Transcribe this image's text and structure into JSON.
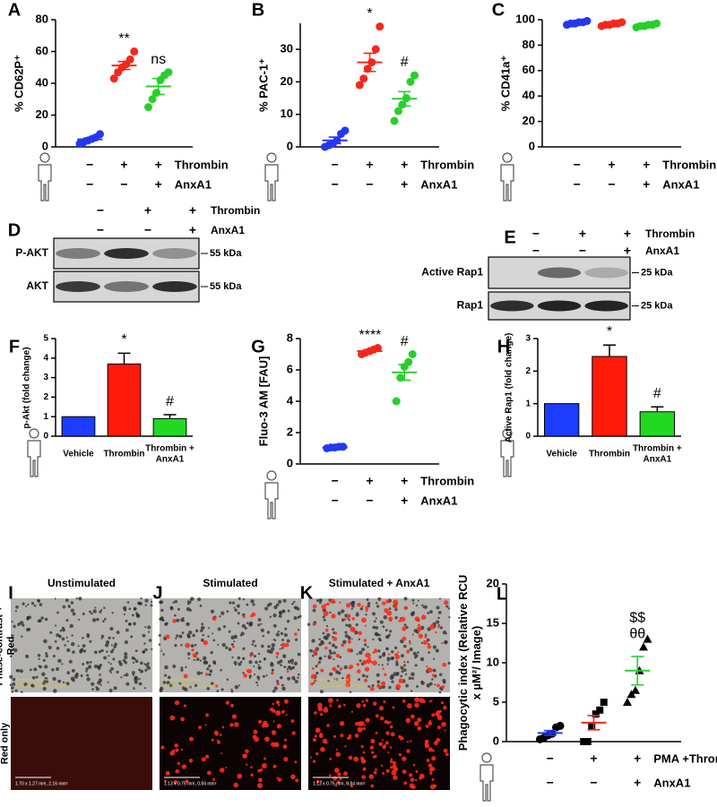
{
  "chart_data": [
    {
      "panel": "A",
      "type": "dotplot",
      "ylabel": "% CD62P⁺",
      "ylim": [
        0,
        80
      ],
      "yticks": [
        0,
        20,
        40,
        60,
        80
      ],
      "series": [
        {
          "color": "#2438f0",
          "values": [
            2,
            3,
            4,
            5,
            6,
            8
          ],
          "mean": 4.7,
          "sem": 0.9
        },
        {
          "color": "#f5271b",
          "values": [
            43,
            47,
            50,
            52,
            55,
            60
          ],
          "mean": 51.2,
          "sem": 2.5
        },
        {
          "color": "#27cf2c",
          "values": [
            25,
            30,
            34,
            42,
            45,
            47
          ],
          "mean": 38,
          "sem": 5
        }
      ],
      "annotations": [
        null,
        "**",
        "ns"
      ],
      "conditions": [
        {
          "label": "Thrombin",
          "signs": [
            "−",
            "+",
            "+"
          ]
        },
        {
          "label": "AnxA1",
          "signs": [
            "−",
            "−",
            "+"
          ]
        }
      ]
    },
    {
      "panel": "B",
      "type": "dotplot",
      "ylabel": "% PAC-1⁺",
      "ylim": [
        0,
        38
      ],
      "yticks": [
        0,
        10,
        20,
        30
      ],
      "series": [
        {
          "color": "#2438f0",
          "values": [
            0,
            0.5,
            1,
            2,
            4,
            5
          ],
          "mean": 2,
          "sem": 1
        },
        {
          "color": "#f5271b",
          "values": [
            19,
            21,
            24,
            26,
            30,
            37
          ],
          "mean": 26,
          "sem": 2.8
        },
        {
          "color": "#27cf2c",
          "values": [
            8,
            11,
            13,
            15,
            20,
            22
          ],
          "mean": 14.8,
          "sem": 2.2
        }
      ],
      "annotations": [
        null,
        "*",
        "#"
      ],
      "conditions": [
        {
          "label": "Thrombin",
          "signs": [
            "−",
            "+",
            "+"
          ]
        },
        {
          "label": "AnxA1",
          "signs": [
            "−",
            "−",
            "+"
          ]
        }
      ]
    },
    {
      "panel": "C",
      "type": "dotplot",
      "ylabel": "% CD41a⁺",
      "ylim": [
        0,
        100
      ],
      "yticks": [
        0,
        20,
        40,
        60,
        80,
        100
      ],
      "series": [
        {
          "color": "#2438f0",
          "values": [
            96,
            97,
            97,
            98,
            98,
            99
          ],
          "mean": 97.5,
          "sem": 0.5
        },
        {
          "color": "#f5271b",
          "values": [
            95,
            96,
            96,
            97,
            97,
            98
          ],
          "mean": 96.5,
          "sem": 0.4
        },
        {
          "color": "#27cf2c",
          "values": [
            94,
            95,
            95,
            96,
            96,
            97
          ],
          "mean": 95.5,
          "sem": 0.4
        }
      ],
      "conditions": [
        {
          "label": "Thrombin",
          "signs": [
            "−",
            "+",
            "+"
          ]
        },
        {
          "label": "AnxA1",
          "signs": [
            "−",
            "−",
            "+"
          ]
        }
      ]
    },
    {
      "panel": "F",
      "type": "bar",
      "ylabel": "p-Akt (fold change)",
      "ylim": [
        0,
        5
      ],
      "yticks": [
        0,
        1,
        2,
        3,
        4,
        5
      ],
      "categories": [
        "Vehicle",
        "Thrombin",
        "Thrombin + AnxA1"
      ],
      "values": [
        1,
        3.7,
        0.9
      ],
      "errors": [
        null,
        0.55,
        0.2
      ],
      "colors": [
        "#1e3cff",
        "#ff1a0a",
        "#22d922"
      ],
      "annotations": [
        null,
        "*",
        "#"
      ]
    },
    {
      "panel": "G",
      "type": "dotplot",
      "ylabel": "Fluo-3 AM [FAU]",
      "ylim": [
        0,
        8
      ],
      "yticks": [
        0,
        2,
        4,
        6,
        8
      ],
      "series": [
        {
          "color": "#2438f0",
          "values": [
            1,
            1.05,
            1.05,
            1.1,
            1.1
          ],
          "mean": 1.06,
          "sem": 0.02
        },
        {
          "color": "#f5271b",
          "values": [
            7,
            7.1,
            7.2,
            7.3,
            7.4
          ],
          "mean": 7.2,
          "sem": 0.1
        },
        {
          "color": "#27cf2c",
          "values": [
            4,
            5.5,
            6.2,
            6.5,
            7
          ],
          "mean": 5.84,
          "sem": 0.5
        }
      ],
      "annotations": [
        null,
        "****",
        "#"
      ],
      "conditions": [
        {
          "label": "Thrombin",
          "signs": [
            "−",
            "+",
            "+"
          ]
        },
        {
          "label": "AnxA1",
          "signs": [
            "−",
            "−",
            "+"
          ]
        }
      ]
    },
    {
      "panel": "H",
      "type": "bar",
      "ylabel": "Active Rap1 (fold change)",
      "ylim": [
        0,
        3
      ],
      "yticks": [
        0,
        1,
        2,
        3
      ],
      "categories": [
        "Vehicle",
        "Thrombin",
        "Thrombin + AnxA1"
      ],
      "values": [
        1,
        2.45,
        0.75
      ],
      "errors": [
        null,
        0.35,
        0.15
      ],
      "colors": [
        "#1e3cff",
        "#ff1a0a",
        "#22d922"
      ],
      "annotations": [
        null,
        "*",
        "#"
      ]
    },
    {
      "panel": "L",
      "type": "dotplot",
      "ylabel": "Phagocytic index (Relative RCU x µM²/ Image)",
      "ylim": [
        0,
        20
      ],
      "yticks": [
        0,
        5,
        10,
        15,
        20
      ],
      "marker_color": "#000000",
      "markers": [
        "circle",
        "square",
        "triangle"
      ],
      "series": [
        {
          "color": "#2438f0",
          "values": [
            0.3,
            0.5,
            0.8,
            1,
            1.8,
            2
          ],
          "mean": 1.1,
          "sem": 0.3
        },
        {
          "color": "#f5271b",
          "values": [
            0,
            0,
            2,
            3.5,
            4,
            5
          ],
          "mean": 2.4,
          "sem": 0.9
        },
        {
          "color": "#27cf2c",
          "values": [
            5,
            6,
            6.5,
            9,
            12,
            13
          ],
          "mean": 9,
          "sem": 1.8
        }
      ],
      "annotations": [
        null,
        null,
        "$$ θθ"
      ],
      "conditions": [
        {
          "label": "PMA +Thrombin",
          "signs": [
            "−",
            "+",
            "+"
          ]
        },
        {
          "label": "AnxA1",
          "signs": [
            "−",
            "−",
            "+"
          ]
        }
      ]
    }
  ],
  "blots": [
    {
      "panel": "D",
      "conditions": [
        {
          "label": "Thrombin",
          "signs": [
            "−",
            "+",
            "+"
          ]
        },
        {
          "label": "AnxA1",
          "signs": [
            "−",
            "−",
            "+"
          ]
        }
      ],
      "rows": [
        {
          "label": "P-AKT",
          "marker": "55 kDa"
        },
        {
          "label": "AKT",
          "marker": "55 kDa"
        }
      ]
    },
    {
      "panel": "E",
      "conditions": [
        {
          "label": "Thrombin",
          "signs": [
            "−",
            "+",
            "+"
          ]
        },
        {
          "label": "AnxA1",
          "signs": [
            "−",
            "−",
            "+"
          ]
        }
      ],
      "rows": [
        {
          "label": "Active Rap1",
          "marker": "25 kDa"
        },
        {
          "label": "Rap1",
          "marker": "25 kDa"
        }
      ]
    }
  ],
  "micrographs": {
    "columns": [
      {
        "panel": "I",
        "title": "Unstimulated",
        "scale_label": "1.70 x 1.27 mm, 2.16 mm²"
      },
      {
        "panel": "J",
        "title": "Stimulated",
        "scale_label": "1.13 x 0.75 mm, 0.84 mm²"
      },
      {
        "panel": "K",
        "title": "Stimulated + AnxA1",
        "scale_label": "1.13 x 0.75 mm, 0.84 mm²"
      }
    ],
    "rows": [
      "Phase-contrast + Red",
      "Red only"
    ]
  }
}
